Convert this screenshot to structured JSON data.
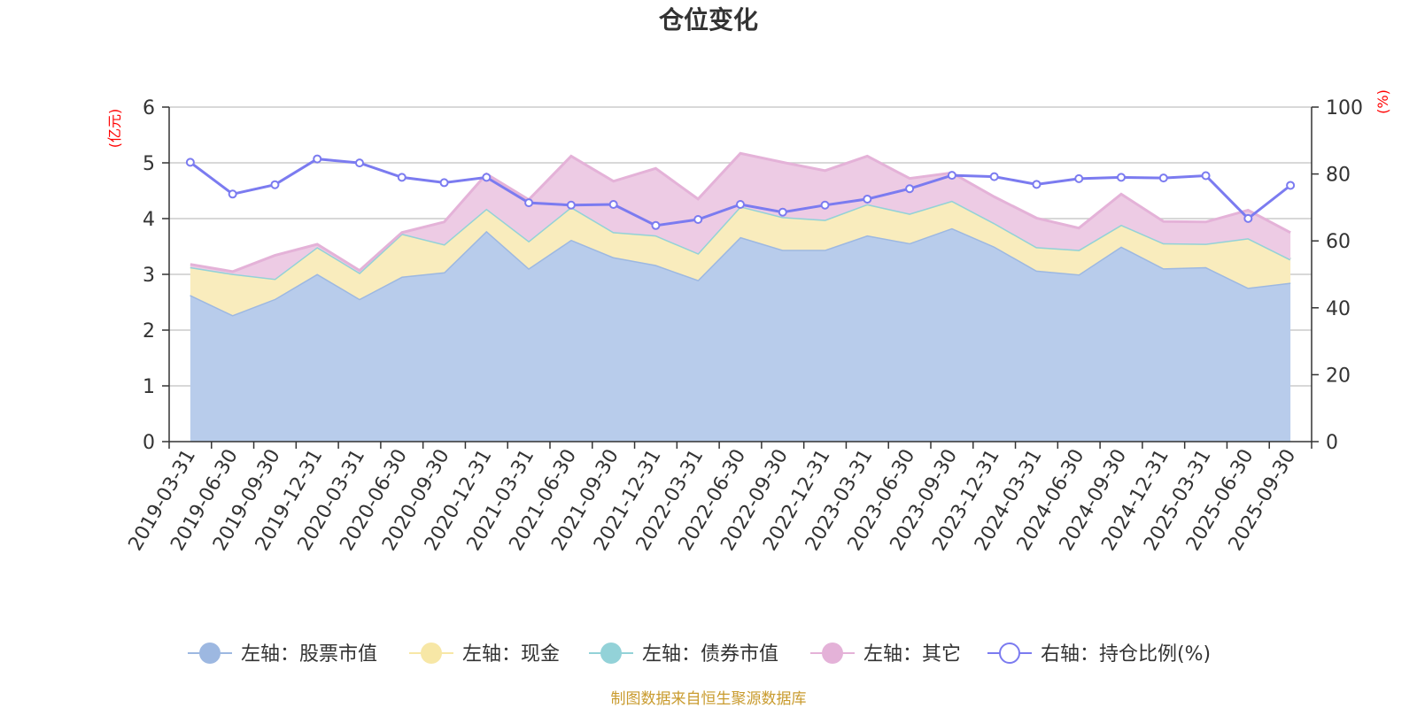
{
  "chart_data": {
    "type": "area",
    "title": "仓位变化",
    "left_axis": {
      "unit": "(亿元)",
      "ylim": [
        0,
        6
      ],
      "ticks": [
        "0",
        "1",
        "2",
        "3",
        "4",
        "5",
        "6"
      ]
    },
    "right_axis": {
      "unit": "(%)",
      "ylim": [
        0,
        100
      ],
      "ticks": [
        "0",
        "20",
        "40",
        "60",
        "80",
        "100"
      ]
    },
    "x": [
      "2019-03-31",
      "2019-06-30",
      "2019-09-30",
      "2019-12-31",
      "2020-03-31",
      "2020-06-30",
      "2020-09-30",
      "2020-12-31",
      "2021-03-31",
      "2021-06-30",
      "2021-09-30",
      "2021-12-31",
      "2022-03-31",
      "2022-06-30",
      "2022-09-30",
      "2022-12-31",
      "2023-03-31",
      "2023-06-30",
      "2023-09-30",
      "2023-12-31",
      "2024-03-31",
      "2024-06-30",
      "2024-09-30",
      "2024-12-31",
      "2025-03-31",
      "2025-06-30",
      "2025-09-30"
    ],
    "series": [
      {
        "name": "左轴：股票市值",
        "axis": "left",
        "stacked": true,
        "color": "#9db8e1",
        "fill": "#b8cceb",
        "values": [
          2.63,
          2.27,
          2.56,
          3.01,
          2.56,
          2.96,
          3.04,
          3.78,
          3.11,
          3.62,
          3.31,
          3.17,
          2.9,
          3.67,
          3.44,
          3.44,
          3.7,
          3.56,
          3.83,
          3.5,
          3.07,
          3.0,
          3.5,
          3.11,
          3.13,
          2.76,
          2.85
        ]
      },
      {
        "name": "左轴：现金",
        "axis": "left",
        "stacked": true,
        "color": "#f7e7a6",
        "fill": "#f9ecbd",
        "values": [
          0.5,
          0.74,
          0.36,
          0.48,
          0.47,
          0.77,
          0.5,
          0.4,
          0.49,
          0.59,
          0.45,
          0.53,
          0.48,
          0.55,
          0.59,
          0.54,
          0.56,
          0.53,
          0.49,
          0.42,
          0.42,
          0.44,
          0.39,
          0.45,
          0.42,
          0.89,
          0.42
        ]
      },
      {
        "name": "左轴：债券市值",
        "axis": "left",
        "stacked": true,
        "color": "#93d2d8",
        "fill": "#b2e0e4",
        "values": [
          0,
          0,
          0,
          0,
          0,
          0,
          0,
          0,
          0,
          0,
          0,
          0,
          0,
          0,
          0,
          0,
          0,
          0,
          0,
          0,
          0,
          0,
          0,
          0,
          0,
          0,
          0
        ]
      },
      {
        "name": "左轴：其它",
        "axis": "left",
        "stacked": true,
        "color": "#e4b2d8",
        "fill": "#edcbe4",
        "values": [
          0.05,
          0.04,
          0.42,
          0.05,
          0.04,
          0.02,
          0.4,
          0.62,
          0.74,
          0.91,
          0.91,
          1.2,
          0.97,
          0.95,
          0.98,
          0.88,
          0.86,
          0.63,
          0.5,
          0.47,
          0.52,
          0.39,
          0.55,
          0.39,
          0.39,
          0.5,
          0.48
        ]
      },
      {
        "name": "右轴：持仓比例(%)",
        "axis": "right",
        "type": "line",
        "color": "#7b7bf0",
        "values": [
          83.5,
          74.0,
          76.8,
          84.5,
          83.3,
          79.0,
          77.4,
          79.0,
          71.4,
          70.7,
          70.9,
          64.6,
          66.4,
          70.9,
          68.6,
          70.7,
          72.5,
          75.6,
          79.6,
          79.2,
          76.9,
          78.6,
          79.0,
          78.8,
          79.5,
          66.7,
          76.6
        ]
      }
    ],
    "legend_position": "bottom-center",
    "grid": true
  },
  "source_note": "制图数据来自恒生聚源数据库",
  "colors": {
    "left_unit": "#ff0000",
    "right_unit": "#ff0000",
    "source": "#c99b2e",
    "grid": "#cccccc",
    "axis": "#333333"
  }
}
